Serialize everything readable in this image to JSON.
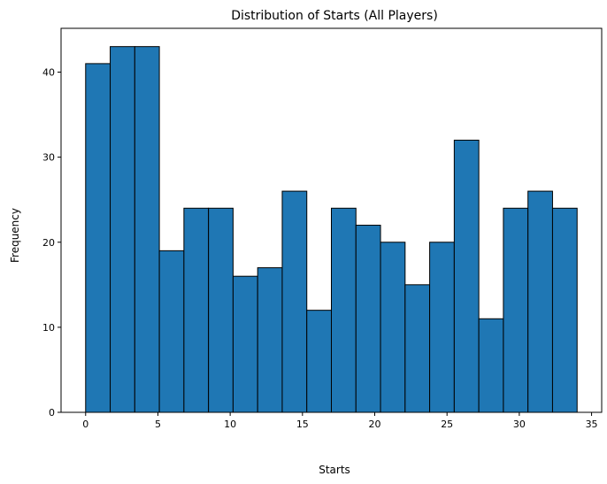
{
  "chart_data": {
    "type": "bar",
    "title": "Distribution of Starts (All Players)",
    "xlabel": "Starts",
    "ylabel": "Frequency",
    "xlim": [
      -1.7,
      35.7
    ],
    "ylim": [
      0,
      45.15
    ],
    "x_ticks": [
      0,
      5,
      10,
      15,
      20,
      25,
      30,
      35
    ],
    "y_ticks": [
      0,
      10,
      20,
      30,
      40
    ],
    "bin_width": 1.7,
    "bin_edges": [
      0,
      1.7,
      3.4,
      5.1,
      6.8,
      8.5,
      10.2,
      11.9,
      13.6,
      15.3,
      17.0,
      18.7,
      20.4,
      22.1,
      23.8,
      25.5,
      27.2,
      28.9,
      30.6,
      32.3,
      34.0
    ],
    "values": [
      41,
      43,
      43,
      19,
      24,
      24,
      16,
      17,
      26,
      12,
      24,
      22,
      20,
      15,
      20,
      32,
      11,
      24,
      26,
      24
    ],
    "bar_color": "#1f77b4",
    "edge_color": "#000000",
    "grid": false,
    "legend": "none"
  }
}
